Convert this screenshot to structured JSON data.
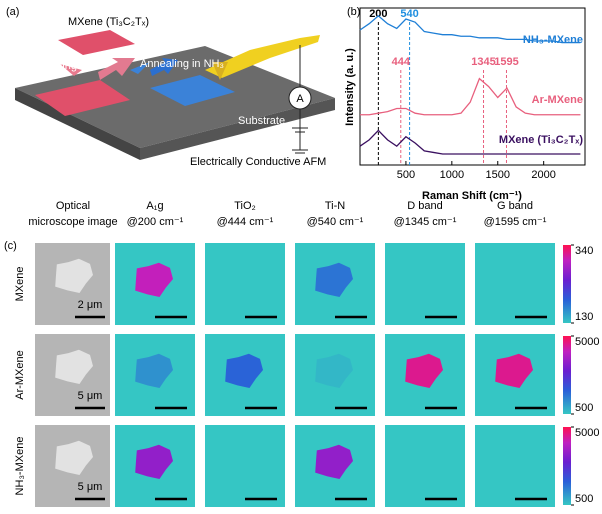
{
  "panel_a": {
    "label": "(a)",
    "mxene": "MXene (Ti₃C₂Tₓ)",
    "annealing_ar": "Annealing in Ar",
    "annealing_nh3": "Annealing in NH₃",
    "meter": "A",
    "substrate": "Substrate",
    "caption": "Electrically Conductive AFM"
  },
  "chart_data": {
    "type": "line",
    "panel_label": "(b)",
    "x_label": "Raman Shift (cm⁻¹)",
    "y_label": "Intensity (a. u.)",
    "x": [
      0,
      100,
      200,
      300,
      400,
      500,
      600,
      700,
      800,
      900,
      1000,
      1100,
      1200,
      1300,
      1400,
      1500,
      1600,
      1700,
      1800,
      1900,
      2000,
      2100,
      2200,
      2300,
      2400
    ],
    "xlim": [
      0,
      2450
    ],
    "ylim": [
      0,
      10
    ],
    "xticks": [
      500,
      1000,
      1500,
      2000
    ],
    "series": [
      {
        "name": "NH₃-MXene",
        "color": "#1f7fd6",
        "values": [
          8.6,
          9.0,
          9.5,
          9.0,
          8.7,
          9.3,
          9.1,
          8.5,
          8.4,
          8.3,
          8.3,
          8.2,
          8.2,
          8.1,
          8.1,
          8.1,
          8.0,
          8.0,
          8.0,
          7.9,
          7.9,
          7.9,
          7.8,
          7.8,
          7.8
        ]
      },
      {
        "name": "Ar-MXene",
        "color": "#e8607e",
        "values": [
          3.2,
          3.2,
          3.3,
          3.4,
          3.6,
          3.6,
          3.3,
          3.2,
          3.2,
          3.2,
          3.2,
          3.3,
          4.0,
          5.5,
          5.0,
          4.3,
          4.9,
          3.7,
          3.3,
          3.2,
          3.2,
          3.2,
          3.2,
          3.2,
          3.2
        ]
      },
      {
        "name": "MXene (Ti₃C₂Tₓ)",
        "color": "#3a1060",
        "values": [
          1.2,
          1.6,
          2.2,
          1.6,
          1.2,
          1.8,
          1.4,
          0.9,
          0.8,
          0.7,
          0.7,
          0.7,
          0.7,
          0.7,
          0.7,
          0.7,
          0.7,
          0.7,
          0.7,
          0.7,
          0.7,
          0.7,
          0.7,
          0.7,
          0.7
        ]
      }
    ],
    "peak_markers": [
      {
        "x": 200,
        "label": "200",
        "color": "#000000"
      },
      {
        "x": 540,
        "label": "540",
        "color": "#1f8fe0"
      },
      {
        "x": 444,
        "label": "444",
        "color": "#e8607e"
      },
      {
        "x": 1345,
        "label": "1345",
        "color": "#e8607e"
      },
      {
        "x": 1595,
        "label": "1595",
        "color": "#e8607e"
      }
    ]
  },
  "panel_c": {
    "label": "(c)",
    "columns": [
      [
        "Optical",
        "microscope image"
      ],
      [
        "A₁g",
        "@200 cm⁻¹"
      ],
      [
        "TiO₂",
        "@444 cm⁻¹"
      ],
      [
        "Ti-N",
        "@540 cm⁻¹"
      ],
      [
        "D band",
        "@1345 cm⁻¹"
      ],
      [
        "G band",
        "@1595 cm⁻¹"
      ]
    ],
    "rows": [
      {
        "name": "MXene",
        "scale_bar": "2 μm",
        "clim": [
          130,
          340
        ],
        "cticks": [
          130,
          340
        ],
        "intensities": [
          300,
          null,
          180,
          null,
          null
        ]
      },
      {
        "name": "Ar-MXene",
        "scale_bar": "5 μm",
        "clim": [
          500,
          5000
        ],
        "cticks": [
          500,
          5000
        ],
        "intensities": [
          1200,
          1800,
          700,
          4500,
          4500
        ]
      },
      {
        "name": "NH₃-MXene",
        "scale_bar": "5 μm",
        "clim": [
          500,
          5000
        ],
        "cticks": [
          500,
          5000
        ],
        "intensities": [
          3500,
          null,
          3500,
          null,
          null
        ]
      }
    ]
  }
}
